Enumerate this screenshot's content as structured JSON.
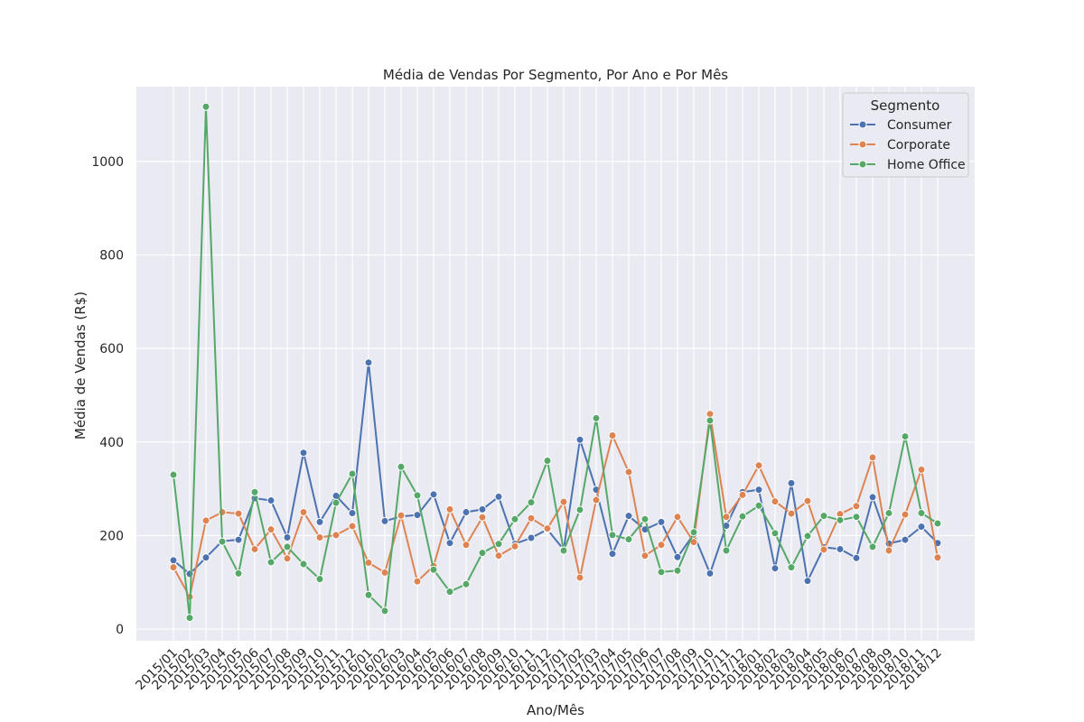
{
  "chart_data": {
    "type": "line",
    "title": "Média de Vendas Por Segmento, Por Ano e Por Mês",
    "xlabel": "Ano/Mês",
    "ylabel": "Média de Vendas (R$)",
    "ylim": [
      -25,
      1160
    ],
    "yticks": [
      0,
      200,
      400,
      600,
      800,
      1000
    ],
    "grid": true,
    "legend_title": "Segmento",
    "legend_position": "top-right",
    "categories": [
      "2015/01",
      "2015/02",
      "2015/03",
      "2015/04",
      "2015/05",
      "2015/06",
      "2015/07",
      "2015/08",
      "2015/09",
      "2015/10",
      "2015/11",
      "2015/12",
      "2016/01",
      "2016/02",
      "2016/03",
      "2016/04",
      "2016/05",
      "2016/06",
      "2016/07",
      "2016/08",
      "2016/09",
      "2016/10",
      "2016/11",
      "2016/12",
      "2017/01",
      "2017/02",
      "2017/03",
      "2017/04",
      "2017/05",
      "2017/06",
      "2017/07",
      "2017/08",
      "2017/09",
      "2017/10",
      "2017/11",
      "2017/12",
      "2018/01",
      "2018/02",
      "2018/03",
      "2018/04",
      "2018/05",
      "2018/06",
      "2018/07",
      "2018/08",
      "2018/09",
      "2018/10",
      "2018/11",
      "2018/12"
    ],
    "series": [
      {
        "name": "Consumer",
        "color": "#4c72b0",
        "values": [
          147,
          118,
          153,
          188,
          191,
          280,
          275,
          196,
          377,
          229,
          285,
          248,
          570,
          231,
          241,
          244,
          288,
          184,
          250,
          256,
          283,
          182,
          195,
          213,
          170,
          405,
          298,
          161,
          242,
          213,
          229,
          154,
          203,
          119,
          221,
          293,
          298,
          130,
          312,
          103,
          175,
          171,
          152,
          282,
          183,
          191,
          219,
          184
        ]
      },
      {
        "name": "Corporate",
        "color": "#dd8452",
        "values": [
          132,
          69,
          232,
          250,
          247,
          171,
          213,
          151,
          250,
          196,
          201,
          220,
          142,
          121,
          243,
          102,
          135,
          256,
          180,
          239,
          157,
          177,
          237,
          215,
          272,
          110,
          276,
          414,
          336,
          157,
          180,
          240,
          186,
          460,
          240,
          287,
          350,
          273,
          247,
          274,
          170,
          246,
          263,
          367,
          168,
          245,
          341,
          153
        ]
      },
      {
        "name": "Home Office",
        "color": "#55a868",
        "values": [
          330,
          24,
          1117,
          187,
          119,
          293,
          143,
          176,
          139,
          107,
          270,
          332,
          73,
          39,
          347,
          286,
          127,
          80,
          96,
          163,
          182,
          235,
          271,
          360,
          168,
          255,
          451,
          201,
          192,
          235,
          122,
          125,
          207,
          446,
          168,
          241,
          264,
          205,
          132,
          199,
          242,
          233,
          240,
          176,
          248,
          412,
          248,
          226
        ]
      }
    ]
  }
}
